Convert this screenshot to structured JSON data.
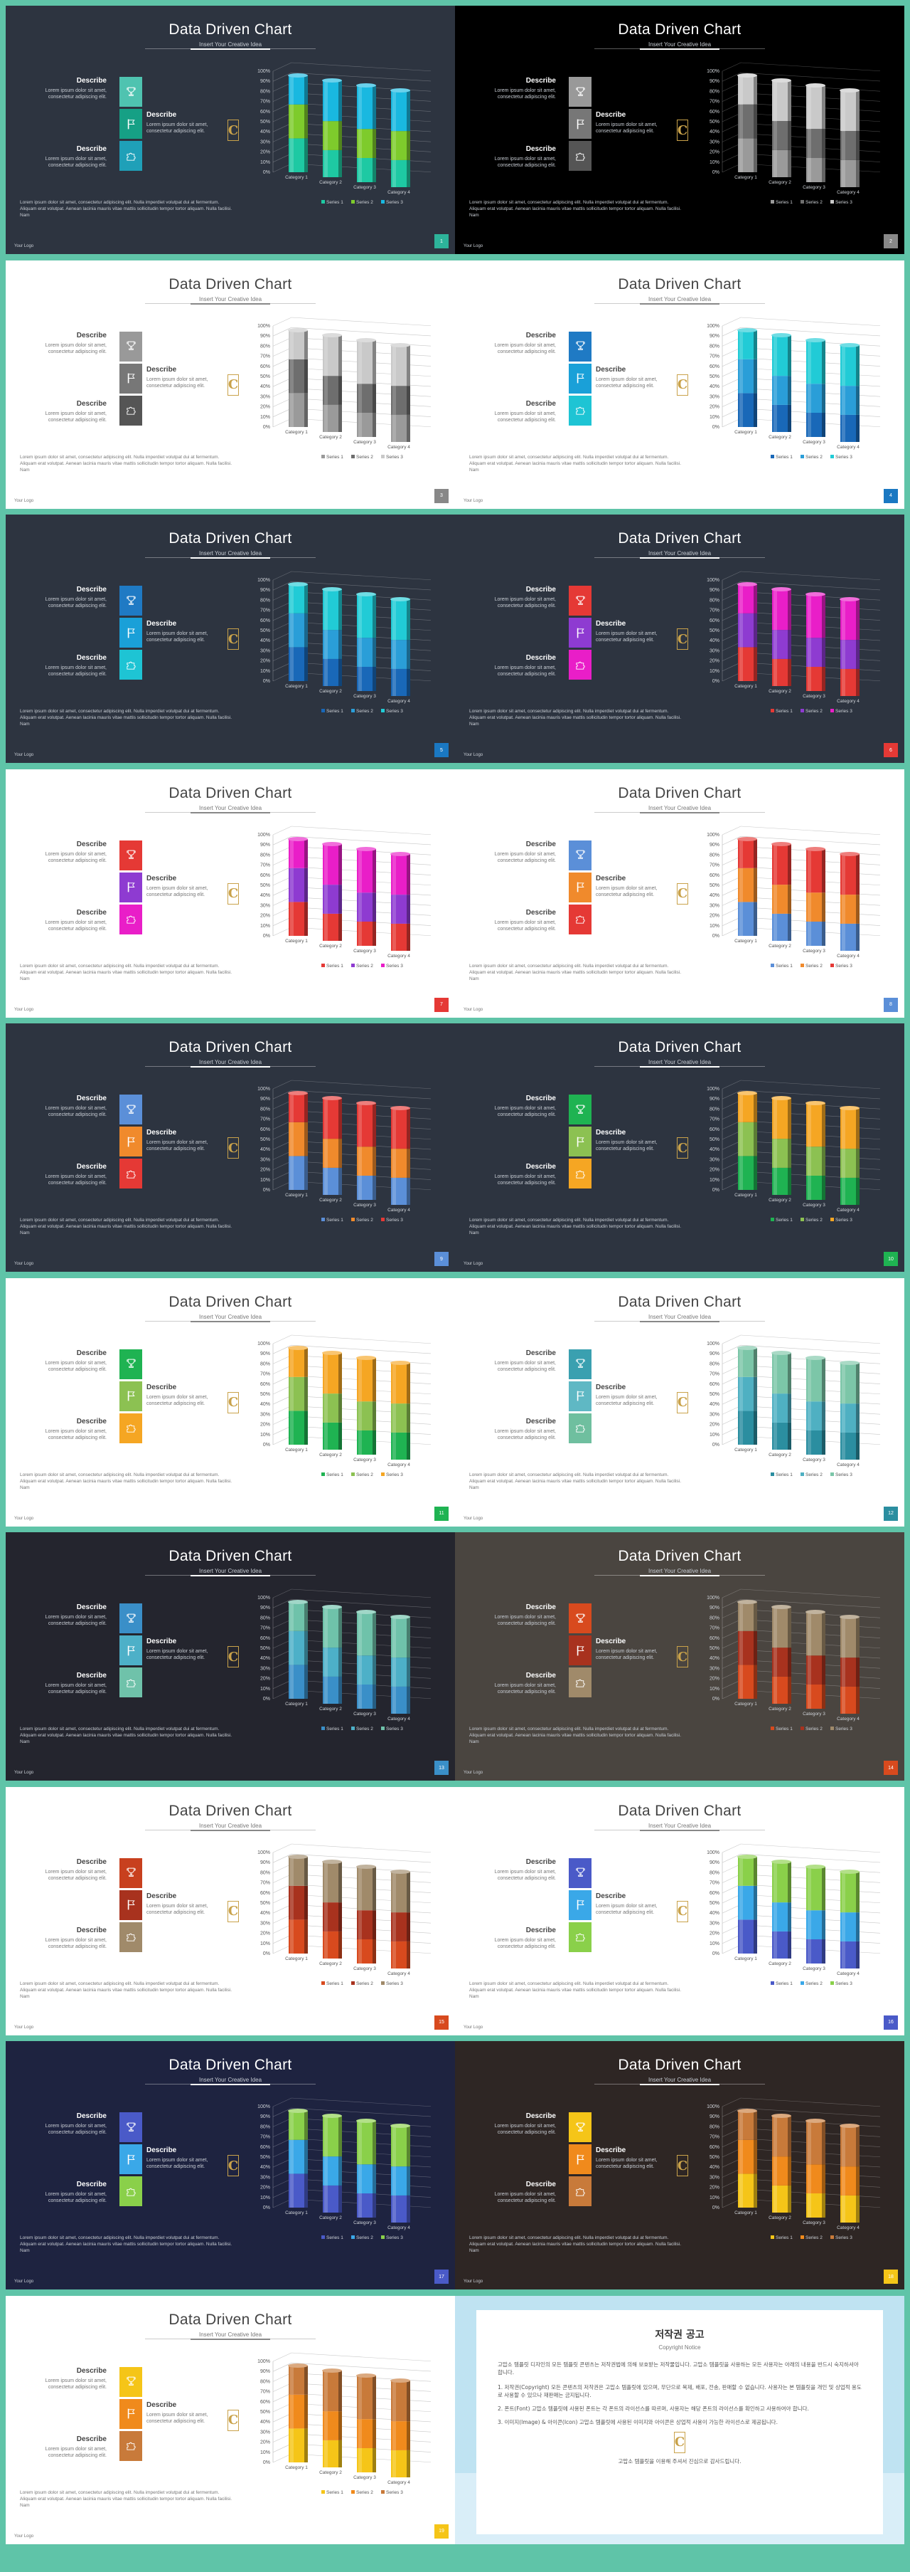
{
  "common": {
    "title": "Data Driven Chart",
    "subtitle": "Insert Your Creative Idea",
    "describe_label": "Describe",
    "describe_text": "Lorem ipsum dolor sit amet, consectetur adipiscing elit.",
    "paragraph": "Lorem ipsum dolor sit amet, consectetur adipiscing elit. Nulla imperdiet volutpat dui at fermentum. Aliquam erat volutpat. Aenean lacinia mauris vitae mattis sollicitudin tempor tortor aliquam. Nulla facilisi. Nam",
    "footer": "Your Logo",
    "logo_letter": "C"
  },
  "chart_data": [
    {
      "type": "bar",
      "categories": [
        "Category 1",
        "Category 2",
        "Category 3",
        "Category 4"
      ],
      "series": [
        {
          "name": "Series 1",
          "values": [
            35,
            28,
            25,
            28
          ]
        },
        {
          "name": "Series 2",
          "values": [
            35,
            30,
            30,
            30
          ]
        },
        {
          "name": "Series 3",
          "values": [
            30,
            42,
            45,
            42
          ]
        }
      ],
      "ylim": [
        0,
        100
      ],
      "yunit": "%"
    }
  ],
  "slides": [
    {
      "theme": "dark",
      "bg": "#2d3440",
      "icons": [
        "#4fc3b0",
        "#16a085",
        "#1fa0b8"
      ],
      "series_colors": [
        "#1ec9a3",
        "#7ecb2c",
        "#19b8e0"
      ],
      "page": "1",
      "page_color": "#2db39a"
    },
    {
      "theme": "dark",
      "bg": "#000000",
      "icons": [
        "#999999",
        "#777777",
        "#555555"
      ],
      "series_colors": [
        "#9a9a9a",
        "#6e6e6e",
        "#c9c9c9"
      ],
      "page": "2",
      "page_color": "#888888"
    },
    {
      "theme": "light",
      "bg": "#ffffff",
      "icons": [
        "#999999",
        "#777777",
        "#555555"
      ],
      "series_colors": [
        "#9a9a9a",
        "#6e6e6e",
        "#c9c9c9"
      ],
      "page": "3",
      "page_color": "#888888"
    },
    {
      "theme": "light",
      "bg": "#ffffff",
      "icons": [
        "#1f7ac4",
        "#1aa0d8",
        "#1ec4d4"
      ],
      "series_colors": [
        "#1968b8",
        "#2a9ed8",
        "#21cbd6"
      ],
      "page": "4",
      "page_color": "#1a78c2"
    },
    {
      "theme": "dark",
      "bg": "#2d3440",
      "icons": [
        "#1f7ac4",
        "#1aa0d8",
        "#1ec4d4"
      ],
      "series_colors": [
        "#1968b8",
        "#2a9ed8",
        "#21cbd6"
      ],
      "page": "5",
      "page_color": "#1a78c2"
    },
    {
      "theme": "dark",
      "bg": "#2d3440",
      "icons": [
        "#e53935",
        "#8e3bd1",
        "#e91ec8"
      ],
      "series_colors": [
        "#e53935",
        "#8e3bd1",
        "#e91ec8"
      ],
      "page": "6",
      "page_color": "#e53935"
    },
    {
      "theme": "light",
      "bg": "#ffffff",
      "icons": [
        "#e53935",
        "#8e3bd1",
        "#e91ec8"
      ],
      "series_colors": [
        "#e53935",
        "#8e3bd1",
        "#e91ec8"
      ],
      "page": "7",
      "page_color": "#e53935"
    },
    {
      "theme": "light",
      "bg": "#ffffff",
      "icons": [
        "#5b8fd8",
        "#f08a2c",
        "#e53935"
      ],
      "series_colors": [
        "#5b8fd8",
        "#f08a2c",
        "#e53935"
      ],
      "page": "8",
      "page_color": "#5b8fd8"
    },
    {
      "theme": "dark",
      "bg": "#2d3440",
      "icons": [
        "#5b8fd8",
        "#f08a2c",
        "#e53935"
      ],
      "series_colors": [
        "#5b8fd8",
        "#f08a2c",
        "#e53935"
      ],
      "page": "9",
      "page_color": "#5b8fd8"
    },
    {
      "theme": "dark",
      "bg": "#2d3440",
      "icons": [
        "#1fb352",
        "#8cc152",
        "#f5a623"
      ],
      "series_colors": [
        "#1fb352",
        "#8cc152",
        "#f5a623"
      ],
      "page": "10",
      "page_color": "#1fb352"
    },
    {
      "theme": "light",
      "bg": "#ffffff",
      "icons": [
        "#1fb352",
        "#8cc152",
        "#f5a623"
      ],
      "series_colors": [
        "#1fb352",
        "#8cc152",
        "#f5a623"
      ],
      "page": "11",
      "page_color": "#1fb352"
    },
    {
      "theme": "light",
      "bg": "#ffffff",
      "icons": [
        "#3aa0b0",
        "#5fb8c4",
        "#6fbf9f"
      ],
      "series_colors": [
        "#2b8ea0",
        "#4fb0c2",
        "#7cc6a8"
      ],
      "page": "12",
      "page_color": "#2b8ea0"
    },
    {
      "theme": "dark",
      "bg": "#24252e",
      "icons": [
        "#3a8fc8",
        "#4db0c8",
        "#6fc2aa"
      ],
      "series_colors": [
        "#3a8fc8",
        "#4db0c8",
        "#6fc2aa"
      ],
      "page": "13",
      "page_color": "#3a8fc8"
    },
    {
      "theme": "dark",
      "bg": "#4a4540",
      "icons": [
        "#d84a1e",
        "#a8321e",
        "#a08a6a"
      ],
      "series_colors": [
        "#d84a1e",
        "#a8321e",
        "#a08a6a"
      ],
      "page": "14",
      "page_color": "#d84a1e"
    },
    {
      "theme": "light",
      "bg": "#ffffff",
      "icons": [
        "#c8401e",
        "#a8321e",
        "#a08a6a"
      ],
      "series_colors": [
        "#d84a1e",
        "#a8321e",
        "#a08a6a"
      ],
      "page": "15",
      "page_color": "#d84a1e"
    },
    {
      "theme": "light",
      "bg": "#ffffff",
      "icons": [
        "#4a5ac8",
        "#3aa8e8",
        "#8ad04a"
      ],
      "series_colors": [
        "#4a5ac8",
        "#3aa8e8",
        "#8ad04a"
      ],
      "page": "16",
      "page_color": "#4a5ac8"
    },
    {
      "theme": "dark",
      "bg": "#1e2340",
      "icons": [
        "#4a5ac8",
        "#3aa8e8",
        "#8ad04a"
      ],
      "series_colors": [
        "#4a5ac8",
        "#3aa8e8",
        "#8ad04a"
      ],
      "page": "17",
      "page_color": "#4a5ac8"
    },
    {
      "theme": "dark",
      "bg": "#2e2624",
      "icons": [
        "#f5c518",
        "#f08a1c",
        "#c87a3a"
      ],
      "series_colors": [
        "#f5c518",
        "#f08a1c",
        "#c87a3a"
      ],
      "page": "18",
      "page_color": "#f5c518"
    },
    {
      "theme": "light",
      "bg": "#ffffff",
      "icons": [
        "#f5c518",
        "#f08a1c",
        "#c87a3a"
      ],
      "series_colors": [
        "#f5c518",
        "#f08a1c",
        "#c87a3a"
      ],
      "page": "19",
      "page_color": "#f5c518"
    }
  ],
  "notice": {
    "title": "저작권 공고",
    "subtitle": "Copyright Notice",
    "intro": "고맙소 템플릿 디자인의 모든 템플릿 콘텐츠는 저작권법에 의해 보호받는 저작물입니다. 고맙소 템플릿을 사용하는 모든 사용자는 아래의 내용을 반드시 숙지하셔야 합니다.",
    "items": [
      "1. 저작권(Copyright) 모든 콘텐츠의 저작권은 고맙소 템플릿에 있으며, 무단으로 복제, 배포, 전송, 판매할 수 없습니다. 사용자는 본 템플릿을 개인 및 상업적 용도로 사용할 수 있으나 재판매는 금지됩니다.",
      "2. 폰트(Font) 고맙소 템플릿에 사용된 폰트는 각 폰트의 라이선스를 따르며, 사용자는 해당 폰트의 라이선스를 확인하고 사용하여야 합니다.",
      "3. 이미지(Image) & 아이콘(Icon) 고맙소 템플릿에 사용된 이미지와 아이콘은 상업적 사용이 가능한 라이선스로 제공됩니다."
    ],
    "outro": "고맙소 템플릿을 이용해 주셔서 진심으로 감사드립니다."
  }
}
